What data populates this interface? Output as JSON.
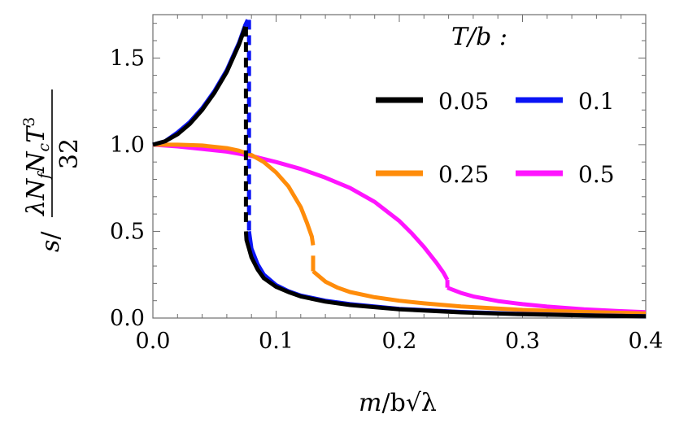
{
  "chart_data": {
    "type": "line",
    "title": "",
    "legend": {
      "title": "T/b :",
      "placement": "top-right",
      "entries": [
        {
          "label": "0.05",
          "color": "#000000"
        },
        {
          "label": "0.1",
          "color": "#0a14f5"
        },
        {
          "label": "0.25",
          "color": "#ff8c0a"
        },
        {
          "label": "0.5",
          "color": "#ff14ff"
        }
      ]
    },
    "xlabel": {
      "parts": [
        "m",
        "/b",
        "√λ"
      ]
    },
    "ylabel": {
      "parts": [
        "s",
        "/",
        "λN",
        "f",
        "N",
        "c",
        "T",
        "3",
        "32"
      ]
    },
    "xlim": [
      0,
      0.4
    ],
    "ylim": [
      0,
      1.75
    ],
    "xticks": [
      "0.0",
      "0.1",
      "0.2",
      "0.3",
      "0.4"
    ],
    "yticks": [
      "0.0",
      "0.5",
      "1.0",
      "1.5"
    ],
    "xtick_values": [
      0,
      0.1,
      0.2,
      0.3,
      0.4
    ],
    "ytick_values": [
      0,
      0.5,
      1.0,
      1.5
    ],
    "grid": false,
    "series": [
      {
        "name": "0.05",
        "color": "#000000",
        "segments": [
          {
            "style": "solid",
            "x": [
              0.0,
              0.01,
              0.02,
              0.03,
              0.04,
              0.05,
              0.06,
              0.07,
              0.075
            ],
            "y": [
              1.0,
              1.02,
              1.06,
              1.12,
              1.2,
              1.3,
              1.42,
              1.58,
              1.68
            ]
          },
          {
            "style": "dashed",
            "x": [
              0.0755,
              0.0755
            ],
            "y": [
              1.68,
              0.55
            ]
          },
          {
            "style": "solid",
            "x": [
              0.0755,
              0.076,
              0.078,
              0.08,
              0.085,
              0.09,
              0.1,
              0.11,
              0.12,
              0.14,
              0.16,
              0.2,
              0.25,
              0.3,
              0.35,
              0.4
            ],
            "y": [
              0.5,
              0.45,
              0.4,
              0.35,
              0.28,
              0.23,
              0.18,
              0.15,
              0.125,
              0.095,
              0.075,
              0.05,
              0.033,
              0.022,
              0.015,
              0.01
            ]
          }
        ]
      },
      {
        "name": "0.1",
        "color": "#0a14f5",
        "segments": [
          {
            "style": "solid",
            "x": [
              0.0,
              0.01,
              0.02,
              0.03,
              0.04,
              0.05,
              0.06,
              0.07,
              0.075,
              0.077
            ],
            "y": [
              1.0,
              1.02,
              1.07,
              1.13,
              1.21,
              1.31,
              1.43,
              1.59,
              1.69,
              1.72
            ]
          },
          {
            "style": "dashed",
            "x": [
              0.078,
              0.078
            ],
            "y": [
              1.72,
              0.5
            ]
          },
          {
            "style": "solid",
            "x": [
              0.078,
              0.08,
              0.085,
              0.09,
              0.1,
              0.11,
              0.12,
              0.14,
              0.16,
              0.2,
              0.25,
              0.3,
              0.35,
              0.4
            ],
            "y": [
              0.5,
              0.4,
              0.31,
              0.25,
              0.19,
              0.155,
              0.13,
              0.1,
              0.08,
              0.053,
              0.035,
              0.024,
              0.016,
              0.011
            ]
          }
        ]
      },
      {
        "name": "0.25",
        "color": "#ff8c0a",
        "segments": [
          {
            "style": "solid",
            "x": [
              0.0,
              0.02,
              0.04,
              0.06,
              0.07,
              0.08,
              0.09,
              0.1,
              0.11,
              0.12,
              0.125,
              0.129,
              0.13
            ],
            "y": [
              1.0,
              1.0,
              0.995,
              0.98,
              0.965,
              0.94,
              0.9,
              0.84,
              0.76,
              0.64,
              0.55,
              0.47,
              0.42
            ]
          },
          {
            "style": "solid",
            "x": [
              0.13,
              0.13
            ],
            "y": [
              0.36,
              0.27
            ]
          },
          {
            "style": "solid",
            "x": [
              0.13,
              0.14,
              0.15,
              0.16,
              0.18,
              0.2,
              0.22,
              0.25,
              0.3,
              0.35,
              0.4
            ],
            "y": [
              0.27,
              0.21,
              0.175,
              0.15,
              0.12,
              0.1,
              0.085,
              0.067,
              0.047,
              0.035,
              0.027
            ]
          }
        ]
      },
      {
        "name": "0.5",
        "color": "#ff14ff",
        "segments": [
          {
            "style": "solid",
            "x": [
              0.0,
              0.02,
              0.04,
              0.06,
              0.08,
              0.1,
              0.12,
              0.14,
              0.16,
              0.18,
              0.2,
              0.21,
              0.22,
              0.23,
              0.236,
              0.239
            ],
            "y": [
              1.0,
              0.99,
              0.975,
              0.96,
              0.935,
              0.9,
              0.86,
              0.81,
              0.75,
              0.67,
              0.56,
              0.49,
              0.41,
              0.32,
              0.26,
              0.22
            ]
          },
          {
            "style": "solid",
            "x": [
              0.239,
              0.239
            ],
            "y": [
              0.22,
              0.175
            ]
          },
          {
            "style": "solid",
            "x": [
              0.239,
              0.25,
              0.26,
              0.28,
              0.3,
              0.32,
              0.35,
              0.38,
              0.4
            ],
            "y": [
              0.175,
              0.145,
              0.125,
              0.098,
              0.08,
              0.066,
              0.05,
              0.04,
              0.034
            ]
          }
        ]
      }
    ]
  }
}
